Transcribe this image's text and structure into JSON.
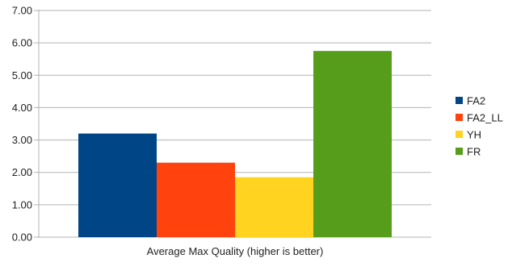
{
  "chart_data": {
    "type": "bar",
    "categories": [
      "Average Max Quality (higher is better)"
    ],
    "series": [
      {
        "name": "FA2",
        "values": [
          3.2
        ],
        "color": "#004586"
      },
      {
        "name": "FA2_LL",
        "values": [
          2.3
        ],
        "color": "#ff420e"
      },
      {
        "name": "YH",
        "values": [
          1.85
        ],
        "color": "#ffd320"
      },
      {
        "name": "FR",
        "values": [
          5.75
        ],
        "color": "#579d1c"
      }
    ],
    "y_ticks": [
      "0.00",
      "1.00",
      "2.00",
      "3.00",
      "4.00",
      "5.00",
      "6.00",
      "7.00"
    ],
    "ylim": [
      0,
      7
    ],
    "grid": true,
    "legend_position": "right"
  }
}
